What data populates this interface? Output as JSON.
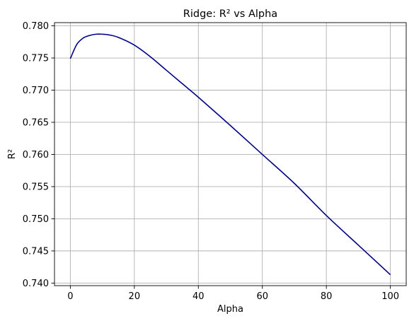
{
  "chart_data": {
    "type": "line",
    "title": "Ridge: R² vs Alpha",
    "xlabel": "Alpha",
    "ylabel": "R²",
    "xlim": [
      -4.95,
      104.95
    ],
    "ylim": [
      0.7396,
      0.7805
    ],
    "xticks": [
      0,
      20,
      40,
      60,
      80,
      100
    ],
    "xtick_labels": [
      "0",
      "20",
      "40",
      "60",
      "80",
      "100"
    ],
    "yticks": [
      0.74,
      0.745,
      0.75,
      0.755,
      0.76,
      0.765,
      0.77,
      0.775,
      0.78
    ],
    "ytick_labels": [
      "0.740",
      "0.745",
      "0.750",
      "0.755",
      "0.760",
      "0.765",
      "0.770",
      "0.775",
      "0.780"
    ],
    "grid": true,
    "line_color": "#00008b",
    "series": [
      {
        "x": [
          0,
          2,
          4,
          6,
          8,
          10,
          12,
          15,
          20,
          25,
          30,
          35,
          40,
          50,
          60,
          70,
          80,
          90,
          100
        ],
        "values": [
          0.7749,
          0.7771,
          0.7781,
          0.7785,
          0.7787,
          0.7787,
          0.7786,
          0.7782,
          0.777,
          0.7752,
          0.7731,
          0.771,
          0.7689,
          0.7645,
          0.76,
          0.7555,
          0.7505,
          0.7459,
          0.7413
        ]
      }
    ]
  }
}
